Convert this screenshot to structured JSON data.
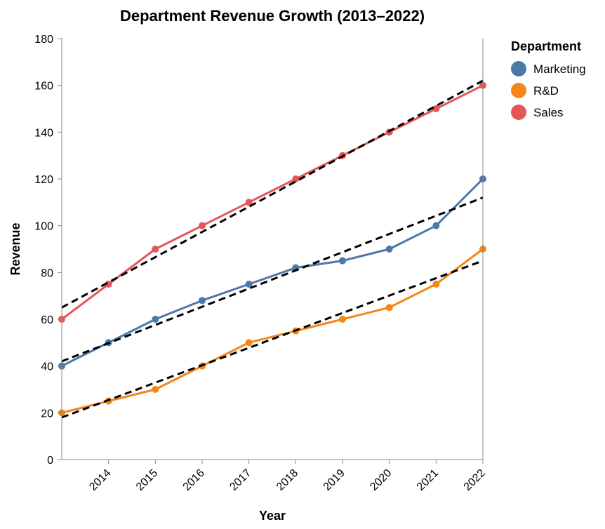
{
  "chart_data": {
    "type": "line",
    "title": "Department Revenue Growth (2013–2022)",
    "xlabel": "Year",
    "ylabel": "Revenue",
    "x": [
      2013,
      2014,
      2015,
      2016,
      2017,
      2018,
      2019,
      2020,
      2021,
      2022
    ],
    "xticks": [
      2014,
      2015,
      2016,
      2017,
      2018,
      2019,
      2020,
      2021,
      2022
    ],
    "xlim": [
      2013,
      2022
    ],
    "ylim": [
      0,
      180
    ],
    "yticks": [
      0,
      20,
      40,
      60,
      80,
      100,
      120,
      140,
      160,
      180
    ],
    "grid": false,
    "legend": {
      "title": "Department",
      "position": "right"
    },
    "series": [
      {
        "name": "Marketing",
        "color": "#4c78a8",
        "values": [
          40,
          50,
          60,
          68,
          75,
          82,
          85,
          90,
          100,
          120
        ],
        "trend": [
          42,
          112
        ]
      },
      {
        "name": "R&D",
        "color": "#f58518",
        "values": [
          20,
          25,
          30,
          40,
          50,
          55,
          60,
          65,
          75,
          90
        ],
        "trend": [
          18,
          85
        ]
      },
      {
        "name": "Sales",
        "color": "#e45756",
        "values": [
          60,
          75,
          90,
          100,
          110,
          120,
          130,
          140,
          150,
          160
        ],
        "trend": [
          65,
          162
        ]
      }
    ],
    "trendline_style": "dashed black linear fit"
  }
}
